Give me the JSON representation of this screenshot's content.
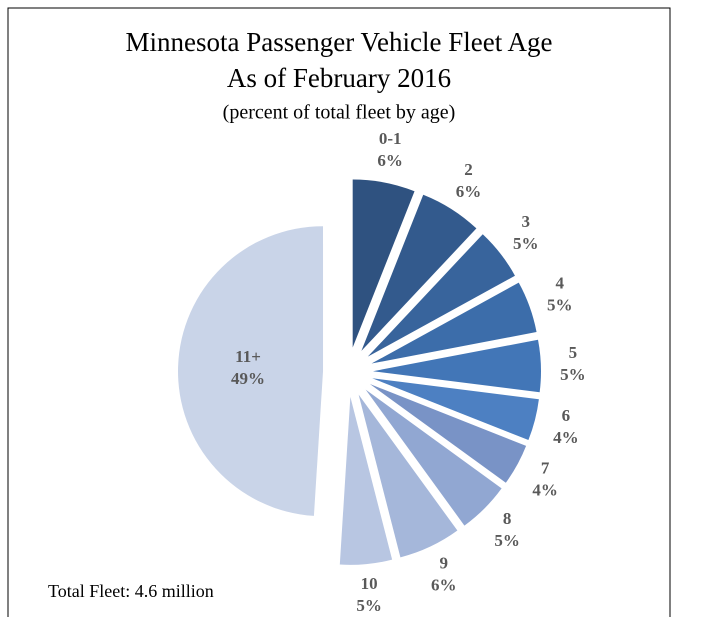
{
  "chart_data": {
    "type": "pie",
    "title": "Minnesota Passenger Vehicle Fleet Age",
    "subtitle": "As of February 2016",
    "note": "(percent of total fleet by age)",
    "annotation": "Total Fleet: 4.6 million",
    "categories": [
      "0-1",
      "2",
      "3",
      "4",
      "5",
      "6",
      "7",
      "8",
      "9",
      "10",
      "11+"
    ],
    "values": [
      6,
      6,
      5,
      5,
      5,
      4,
      4,
      5,
      6,
      5,
      49
    ],
    "value_labels": [
      "6%",
      "6%",
      "5%",
      "5%",
      "5%",
      "4%",
      "4%",
      "5%",
      "6%",
      "5%",
      "49%"
    ],
    "colors": [
      "#2f5280",
      "#335a8d",
      "#38649c",
      "#3c6daa",
      "#4276b7",
      "#4d80c2",
      "#7993c6",
      "#91a7d2",
      "#a5b7da",
      "#b8c6e2",
      "#c9d4e8"
    ]
  }
}
